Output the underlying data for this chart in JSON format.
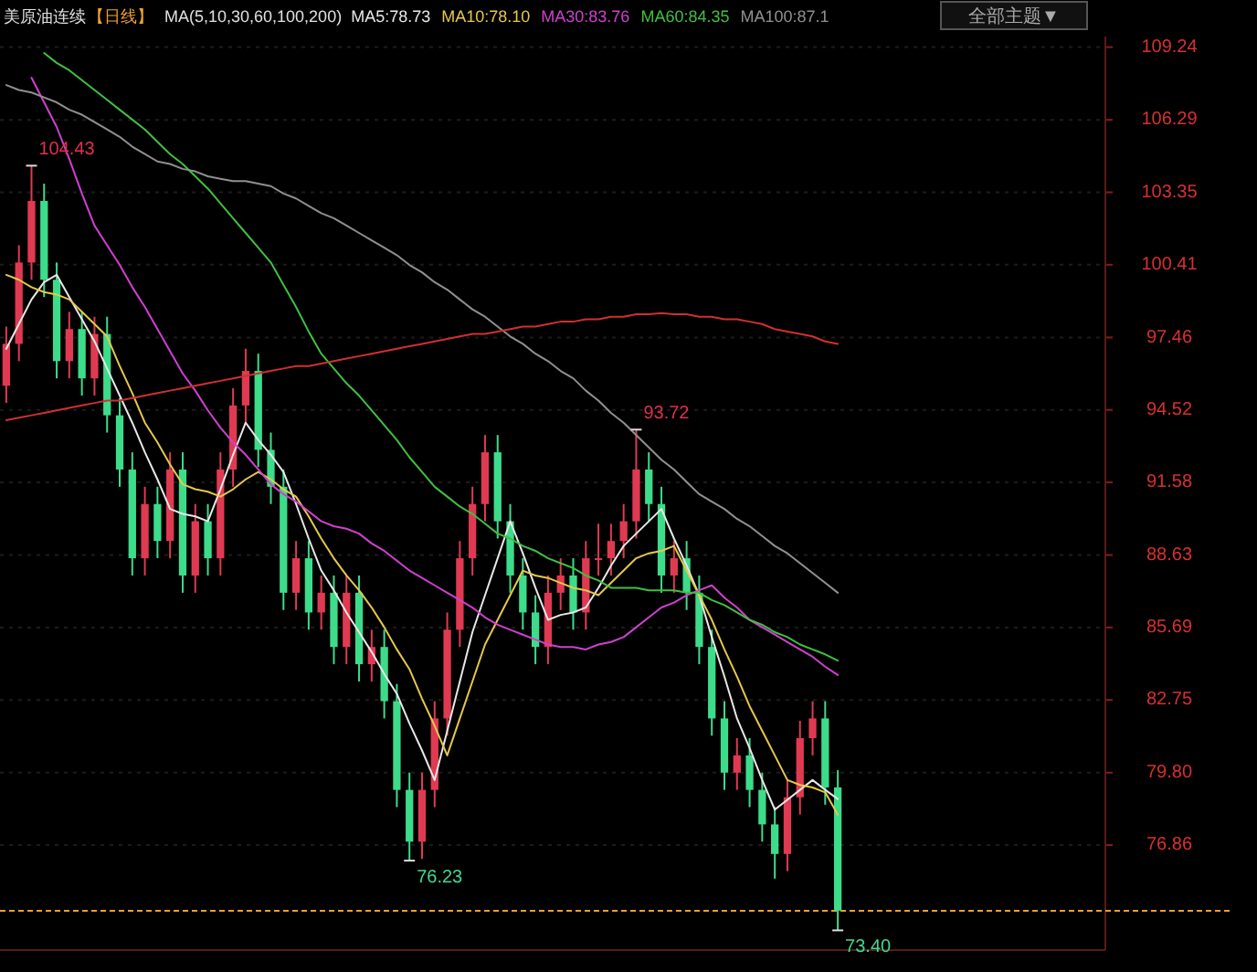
{
  "chart_data": {
    "type": "candlestick",
    "title": "美原油连续",
    "subtitle": "【日线】",
    "legend_title": "MA(5,10,30,60,100,200)",
    "categories": [
      null,
      null,
      null,
      null,
      null,
      null,
      null,
      null,
      null,
      null,
      null,
      null,
      null,
      null,
      null,
      null,
      null,
      null,
      null,
      null,
      null,
      null,
      null,
      null,
      null,
      null,
      null,
      null,
      null,
      null,
      null,
      null,
      null,
      null,
      null,
      null,
      null,
      null,
      null,
      null,
      null,
      null,
      null,
      null,
      null,
      null,
      null,
      null,
      null,
      null,
      null,
      null,
      null,
      null,
      null,
      null,
      null,
      null,
      null,
      null,
      null,
      null,
      null,
      null,
      null,
      null,
      null
    ],
    "ohlc": [
      [
        95.5,
        97.9,
        94.8,
        97.2
      ],
      [
        97.2,
        101.2,
        96.5,
        100.5
      ],
      [
        100.5,
        104.43,
        99.8,
        103.0
      ],
      [
        103.0,
        103.7,
        99.1,
        99.8
      ],
      [
        99.8,
        100.5,
        95.8,
        96.5
      ],
      [
        96.5,
        98.5,
        95.8,
        97.8
      ],
      [
        97.8,
        98.5,
        95.1,
        95.8
      ],
      [
        95.8,
        98.3,
        95.1,
        97.6
      ],
      [
        97.6,
        98.3,
        93.6,
        94.3
      ],
      [
        94.3,
        95.0,
        91.4,
        92.1
      ],
      [
        92.1,
        92.8,
        87.8,
        88.5
      ],
      [
        88.5,
        91.4,
        87.8,
        90.7
      ],
      [
        90.7,
        91.4,
        88.5,
        89.2
      ],
      [
        89.2,
        92.8,
        88.5,
        92.1
      ],
      [
        92.1,
        92.8,
        87.1,
        87.8
      ],
      [
        87.8,
        90.7,
        87.1,
        90.0
      ],
      [
        90.0,
        90.7,
        87.8,
        88.5
      ],
      [
        88.5,
        92.8,
        87.8,
        92.1
      ],
      [
        92.1,
        95.4,
        91.4,
        94.7
      ],
      [
        94.7,
        97.0,
        94.0,
        96.1
      ],
      [
        96.1,
        96.8,
        92.2,
        92.9
      ],
      [
        92.9,
        93.6,
        90.7,
        91.4
      ],
      [
        91.4,
        92.1,
        86.4,
        87.1
      ],
      [
        87.1,
        89.2,
        86.4,
        88.5
      ],
      [
        88.5,
        89.2,
        85.6,
        86.3
      ],
      [
        86.3,
        87.8,
        85.6,
        87.1
      ],
      [
        87.1,
        87.8,
        84.2,
        84.9
      ],
      [
        84.9,
        87.8,
        84.2,
        87.1
      ],
      [
        87.1,
        87.8,
        83.5,
        84.2
      ],
      [
        84.2,
        85.6,
        83.5,
        84.9
      ],
      [
        84.9,
        85.6,
        82.0,
        82.7
      ],
      [
        82.7,
        83.4,
        78.4,
        79.1
      ],
      [
        79.1,
        79.8,
        76.23,
        77.0
      ],
      [
        77.0,
        79.8,
        76.3,
        79.1
      ],
      [
        79.1,
        82.7,
        78.4,
        82.0
      ],
      [
        82.0,
        86.3,
        81.3,
        85.6
      ],
      [
        85.6,
        89.2,
        84.9,
        88.5
      ],
      [
        88.5,
        91.4,
        87.8,
        90.7
      ],
      [
        90.7,
        93.5,
        90.0,
        92.8
      ],
      [
        92.8,
        93.5,
        89.3,
        90.0
      ],
      [
        90.0,
        90.7,
        87.1,
        87.8
      ],
      [
        87.8,
        88.5,
        85.6,
        86.3
      ],
      [
        86.3,
        87.0,
        84.2,
        84.9
      ],
      [
        84.9,
        87.8,
        84.2,
        87.1
      ],
      [
        87.1,
        88.5,
        86.4,
        87.8
      ],
      [
        87.8,
        88.5,
        85.6,
        86.3
      ],
      [
        86.3,
        89.2,
        85.6,
        88.5
      ],
      [
        88.5,
        89.9,
        87.8,
        88.5
      ],
      [
        88.5,
        89.9,
        87.8,
        89.2
      ],
      [
        89.2,
        90.7,
        88.5,
        90.0
      ],
      [
        90.0,
        93.72,
        89.3,
        92.1
      ],
      [
        92.1,
        92.8,
        90.0,
        90.7
      ],
      [
        90.7,
        91.4,
        87.1,
        87.8
      ],
      [
        87.8,
        89.2,
        87.1,
        88.5
      ],
      [
        88.5,
        89.2,
        86.4,
        87.1
      ],
      [
        87.1,
        87.8,
        84.2,
        84.9
      ],
      [
        84.9,
        85.6,
        81.3,
        82.0
      ],
      [
        82.0,
        82.7,
        79.1,
        79.8
      ],
      [
        79.8,
        81.2,
        79.1,
        80.5
      ],
      [
        80.5,
        81.2,
        78.4,
        79.1
      ],
      [
        79.1,
        79.8,
        77.0,
        77.7
      ],
      [
        77.7,
        78.4,
        75.5,
        76.5
      ],
      [
        76.5,
        79.5,
        75.8,
        78.8
      ],
      [
        78.8,
        81.9,
        78.1,
        81.2
      ],
      [
        81.2,
        82.7,
        80.5,
        82.0
      ],
      [
        82.0,
        82.7,
        78.5,
        79.2
      ],
      [
        79.2,
        79.9,
        73.4,
        74.2
      ]
    ],
    "colors": [
      "#e03a52",
      "#e03a52",
      "#e03a52",
      "#3ddc8a",
      "#3ddc8a",
      "#e03a52",
      "#3ddc8a",
      "#e03a52",
      "#3ddc8a",
      "#3ddc8a",
      "#3ddc8a",
      "#e03a52",
      "#3ddc8a",
      "#e03a52",
      "#3ddc8a",
      "#e03a52",
      "#3ddc8a",
      "#e03a52",
      "#e03a52",
      "#e03a52",
      "#3ddc8a",
      "#3ddc8a",
      "#3ddc8a",
      "#e03a52",
      "#3ddc8a",
      "#e03a52",
      "#3ddc8a",
      "#e03a52",
      "#3ddc8a",
      "#e03a52",
      "#3ddc8a",
      "#3ddc8a",
      "#3ddc8a",
      "#e03a52",
      "#e03a52",
      "#e03a52",
      "#e03a52",
      "#e03a52",
      "#e03a52",
      "#3ddc8a",
      "#3ddc8a",
      "#3ddc8a",
      "#3ddc8a",
      "#e03a52",
      "#e03a52",
      "#3ddc8a",
      "#e03a52",
      "#e03a52",
      "#e03a52",
      "#e03a52",
      "#e03a52",
      "#3ddc8a",
      "#3ddc8a",
      "#e03a52",
      "#3ddc8a",
      "#3ddc8a",
      "#3ddc8a",
      "#3ddc8a",
      "#e03a52",
      "#3ddc8a",
      "#3ddc8a",
      "#3ddc8a",
      "#e03a52",
      "#e03a52",
      "#e03a52",
      "#3ddc8a",
      "#3ddc8a"
    ],
    "series": [
      {
        "type": "line",
        "name": "MA5:78.73",
        "color": "#e8e8e8",
        "values": [
          97.0,
          98.0,
          99.0,
          99.7,
          100.0,
          99.1,
          98.2,
          97.3,
          96.2,
          95.1,
          94.0,
          92.8,
          91.7,
          90.5,
          90.3,
          90.2,
          90.0,
          91.3,
          92.7,
          94.0,
          93.3,
          92.7,
          92.0,
          90.7,
          89.3,
          88.0,
          87.2,
          86.3,
          85.5,
          84.7,
          83.8,
          83.0,
          81.8,
          80.7,
          79.5,
          81.5,
          83.5,
          85.5,
          87.0,
          88.5,
          90.0,
          88.7,
          87.3,
          86.0,
          86.2,
          86.3,
          86.5,
          87.3,
          88.2,
          89.0,
          89.5,
          90.0,
          90.5,
          89.3,
          88.2,
          87.0,
          85.3,
          83.7,
          82.0,
          80.8,
          79.5,
          78.3,
          78.7,
          79.1,
          79.5,
          79.1,
          78.73
        ]
      },
      {
        "type": "line",
        "name": "MA10:78.10",
        "color": "#e6c84a",
        "values": [
          100.0,
          99.8,
          99.5,
          99.3,
          99.2,
          99.0,
          98.5,
          98.0,
          97.5,
          96.3,
          95.2,
          94.0,
          93.2,
          92.3,
          91.5,
          91.3,
          91.2,
          91.0,
          91.3,
          91.7,
          92.0,
          91.7,
          91.3,
          91.0,
          90.2,
          89.3,
          88.5,
          87.8,
          87.2,
          86.5,
          85.7,
          84.8,
          84.0,
          82.8,
          81.7,
          80.5,
          82.0,
          83.5,
          85.0,
          86.0,
          87.0,
          88.0,
          87.8,
          87.7,
          87.5,
          87.3,
          87.2,
          87.0,
          87.5,
          88.0,
          88.5,
          88.7,
          88.8,
          89.0,
          88.0,
          87.0,
          86.0,
          84.8,
          83.7,
          82.5,
          81.5,
          80.5,
          79.5,
          79.3,
          79.2,
          79.0,
          78.1
        ]
      },
      {
        "type": "line",
        "name": "MA30:83.76",
        "color": "#d040d0",
        "values": [
          null,
          null,
          108.0,
          107.0,
          106.0,
          104.7,
          103.3,
          102.0,
          101.2,
          100.4,
          99.5,
          98.7,
          97.8,
          96.9,
          96.0,
          95.3,
          94.5,
          93.8,
          93.2,
          92.7,
          92.1,
          91.5,
          91.1,
          90.8,
          90.4,
          90.0,
          89.8,
          89.7,
          89.5,
          89.1,
          88.8,
          88.4,
          88.0,
          87.7,
          87.4,
          87.1,
          86.8,
          86.5,
          86.1,
          85.8,
          85.6,
          85.4,
          85.2,
          85.0,
          84.9,
          84.9,
          84.8,
          85.0,
          85.1,
          85.3,
          85.7,
          86.1,
          86.5,
          86.7,
          87.0,
          87.2,
          87.4,
          86.9,
          86.5,
          86.0,
          85.7,
          85.4,
          85.1,
          84.8,
          84.5,
          84.1,
          83.76
        ]
      },
      {
        "type": "line",
        "name": "MA60:84.35",
        "color": "#40c040",
        "values": [
          null,
          null,
          null,
          109.0,
          108.6,
          108.3,
          107.9,
          107.5,
          107.1,
          106.7,
          106.3,
          105.9,
          105.4,
          104.9,
          104.5,
          104.0,
          103.5,
          102.9,
          102.3,
          101.7,
          101.1,
          100.5,
          99.6,
          98.7,
          97.7,
          96.8,
          96.2,
          95.6,
          95.1,
          94.5,
          93.9,
          93.3,
          92.6,
          92.0,
          91.4,
          91.0,
          90.6,
          90.3,
          89.9,
          89.5,
          89.3,
          89.0,
          88.8,
          88.5,
          88.3,
          88.1,
          87.8,
          87.6,
          87.3,
          87.3,
          87.3,
          87.2,
          87.2,
          87.2,
          87.1,
          87.1,
          86.8,
          86.6,
          86.3,
          86.0,
          85.8,
          85.5,
          85.3,
          85.0,
          84.8,
          84.6,
          84.35
        ]
      },
      {
        "type": "line",
        "name": "MA100:87.1",
        "color": "#909090",
        "values": [
          107.7,
          107.5,
          107.4,
          107.2,
          107.0,
          106.7,
          106.5,
          106.2,
          105.9,
          105.6,
          105.2,
          104.9,
          104.6,
          104.5,
          104.3,
          104.2,
          104.0,
          103.9,
          103.8,
          103.8,
          103.7,
          103.6,
          103.3,
          103.1,
          102.8,
          102.5,
          102.3,
          102.0,
          101.7,
          101.4,
          101.1,
          100.8,
          100.4,
          100.1,
          99.7,
          99.4,
          99.0,
          98.6,
          98.3,
          97.9,
          97.5,
          97.2,
          96.8,
          96.5,
          96.1,
          95.8,
          95.3,
          94.9,
          94.4,
          94.0,
          93.5,
          93.0,
          92.5,
          92.1,
          91.6,
          91.1,
          90.8,
          90.5,
          90.1,
          89.8,
          89.4,
          89.0,
          88.7,
          88.3,
          87.9,
          87.5,
          87.1
        ]
      },
      {
        "type": "line",
        "color": "#d03030",
        "values": [
          94.1,
          94.2,
          94.3,
          94.4,
          94.5,
          94.6,
          94.7,
          94.8,
          94.9,
          94.9,
          95.0,
          95.1,
          95.2,
          95.3,
          95.4,
          95.5,
          95.6,
          95.7,
          95.8,
          95.9,
          96.0,
          96.1,
          96.2,
          96.3,
          96.3,
          96.4,
          96.5,
          96.6,
          96.7,
          96.8,
          96.9,
          97.0,
          97.1,
          97.2,
          97.3,
          97.4,
          97.5,
          97.6,
          97.6,
          97.7,
          97.8,
          97.9,
          97.9,
          98.0,
          98.1,
          98.1,
          98.2,
          98.2,
          98.3,
          98.3,
          98.4,
          98.4,
          98.45,
          98.4,
          98.4,
          98.3,
          98.3,
          98.2,
          98.2,
          98.1,
          98.0,
          97.8,
          97.7,
          97.6,
          97.5,
          97.3,
          97.2
        ]
      }
    ],
    "ylim": [
      72.6,
      109.67
    ],
    "yticks": [
      109.24,
      106.29,
      103.35,
      100.41,
      97.46,
      94.52,
      91.58,
      88.63,
      85.69,
      82.75,
      {
        "value": 79.8,
        "label": "79.80"
      },
      76.86
    ],
    "tick_labels": "y",
    "grid": "y",
    "legend": "top",
    "ref_lines": [
      {
        "axis": "y",
        "value": 74.19,
        "color": "#f0a030",
        "line_style": "dashed"
      }
    ],
    "annotations": [
      "104.43",
      "93.72",
      "76.23",
      "73.40",
      "全部主题▼"
    ]
  }
}
